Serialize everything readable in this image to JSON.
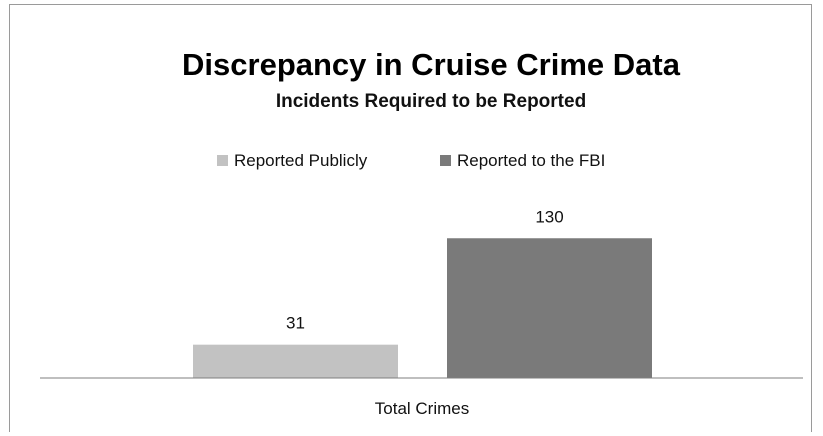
{
  "colors": {
    "reported_publicly": "#c2c2c2",
    "reported_fbi": "#7a7a7a",
    "axis": "#7f7f7f",
    "text": "#111111"
  },
  "chart_data": {
    "type": "bar",
    "title": "Discrepancy in Cruise Crime Data",
    "subtitle": "Incidents Required to be Reported",
    "categories": [
      "Total Crimes"
    ],
    "series": [
      {
        "name": "Reported Publicly",
        "values": [
          31
        ],
        "data_labels": [
          "31"
        ]
      },
      {
        "name": "Reported to the FBI",
        "values": [
          130
        ],
        "data_labels": [
          "130"
        ]
      }
    ],
    "xlabel": "",
    "ylabel": "",
    "ylim": [
      0,
      160
    ],
    "grid": false,
    "legend_position": "top"
  }
}
